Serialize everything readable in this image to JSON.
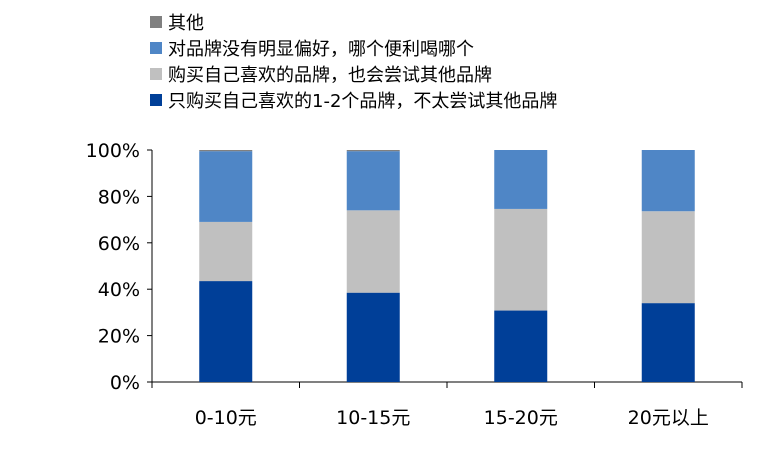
{
  "chart_data": {
    "type": "bar",
    "stacked": true,
    "categories": [
      "0-10元",
      "10-15元",
      "15-20元",
      "20元以上"
    ],
    "series": [
      {
        "name": "只购买自己喜欢的1-2个品牌，不太尝试其他品牌",
        "color": "#003f98",
        "values": [
          43.5,
          38.5,
          30.8,
          34
        ]
      },
      {
        "name": "购买自己喜欢的品牌，也会尝试其他品牌",
        "color": "#c0c0c0",
        "values": [
          25.5,
          35.5,
          43.8,
          39.6
        ]
      },
      {
        "name": "对品牌没有明显偏好，哪个便利喝哪个",
        "color": "#4f86c6",
        "values": [
          30.5,
          25.5,
          25.4,
          26.4
        ]
      },
      {
        "name": "其他",
        "color": "#808080",
        "values": [
          0.5,
          0.5,
          0,
          0
        ]
      }
    ],
    "legend_order": [
      3,
      2,
      1,
      0
    ],
    "legend_position": "top-left",
    "y_ticks": [
      "0%",
      "20%",
      "40%",
      "60%",
      "80%",
      "100%"
    ],
    "ylim": [
      0,
      100
    ],
    "grid": false
  }
}
